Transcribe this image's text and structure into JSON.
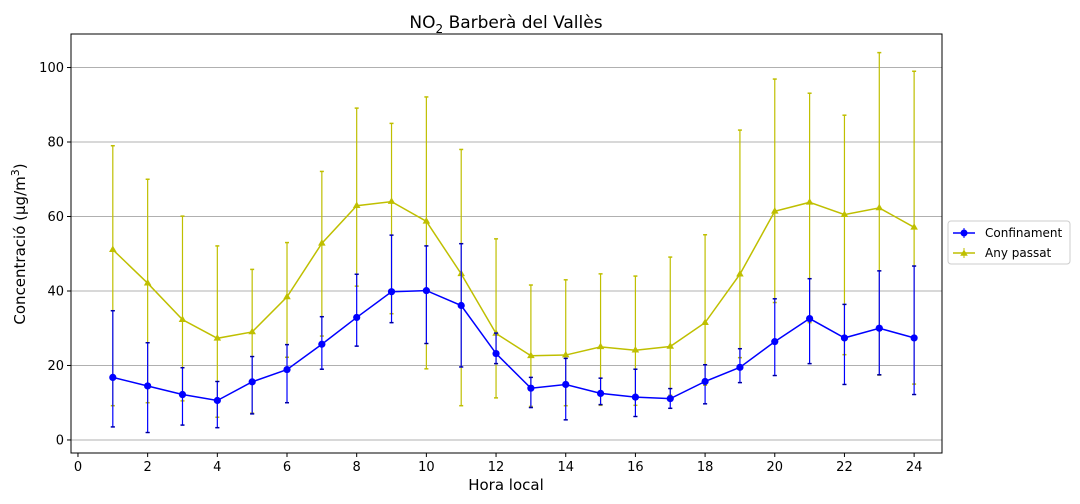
{
  "chart_data": {
    "type": "line",
    "title": "NO",
    "title_subscript": "2",
    "title_rest": " Barberà del Vallès",
    "xlabel": "Hora local",
    "ylabel": "Concentració (µg/m",
    "ylabel_superscript": "3",
    "ylabel_close": ")",
    "xlim": [
      -0.2,
      24.8
    ],
    "ylim": [
      -3.5,
      109
    ],
    "x_ticks": [
      "0",
      "2",
      "4",
      "6",
      "8",
      "10",
      "12",
      "14",
      "16",
      "18",
      "20",
      "22",
      "24"
    ],
    "y_ticks": [
      "0",
      "20",
      "40",
      "60",
      "80",
      "100"
    ],
    "grid": "horizontal",
    "legend_position": "right",
    "x": [
      1,
      2,
      3,
      4,
      5,
      6,
      7,
      8,
      9,
      10,
      11,
      12,
      13,
      14,
      15,
      16,
      17,
      18,
      19,
      20,
      21,
      22,
      23,
      24
    ],
    "series": [
      {
        "name": "Confinament",
        "color": "#0000ff",
        "marker": "circle",
        "values": [
          16.8,
          14.5,
          12.2,
          10.6,
          15.6,
          18.9,
          25.7,
          32.9,
          39.8,
          40.1,
          36.1,
          23.2,
          13.9,
          14.9,
          12.5,
          11.5,
          11.1,
          15.7,
          19.5,
          26.4,
          32.6,
          27.4,
          30.0,
          27.4
        ],
        "err_low": [
          3.5,
          2.0,
          4.0,
          3.3,
          7.0,
          10.0,
          19.0,
          25.2,
          31.5,
          25.9,
          19.6,
          20.5,
          8.7,
          5.4,
          9.5,
          6.3,
          8.5,
          9.7,
          15.4,
          17.3,
          20.5,
          14.9,
          17.5,
          12.2
        ],
        "err_high": [
          34.7,
          26.1,
          19.4,
          15.7,
          22.4,
          25.6,
          33.1,
          44.5,
          55.0,
          52.1,
          52.7,
          28.7,
          16.8,
          21.9,
          16.6,
          19.0,
          13.8,
          20.2,
          24.5,
          37.9,
          43.3,
          36.4,
          45.4,
          46.7
        ]
      },
      {
        "name": "Any passat",
        "color": "#bfbf00",
        "marker": "triangle",
        "values": [
          51.1,
          42.1,
          32.3,
          27.3,
          29.0,
          38.4,
          52.8,
          62.9,
          64.0,
          58.7,
          44.6,
          28.6,
          22.6,
          22.8,
          25.0,
          24.1,
          25.1,
          31.5,
          44.5,
          61.4,
          63.8,
          60.5,
          62.3,
          57.1
        ],
        "err_low": [
          9.2,
          10.0,
          10.5,
          6.1,
          7.2,
          22.2,
          27.9,
          41.3,
          33.9,
          19.1,
          9.2,
          11.3,
          9.0,
          9.2,
          9.3,
          9.3,
          12.0,
          14.7,
          22.1,
          36.9,
          31.5,
          22.9,
          17.4,
          15.0
        ],
        "err_high": [
          79.0,
          70.0,
          60.1,
          52.1,
          45.8,
          53.0,
          72.1,
          89.1,
          85.0,
          92.1,
          78.0,
          54.0,
          41.6,
          43.0,
          44.6,
          44.0,
          49.1,
          55.1,
          83.2,
          96.9,
          93.1,
          87.2,
          104.0,
          99.0
        ]
      }
    ]
  }
}
